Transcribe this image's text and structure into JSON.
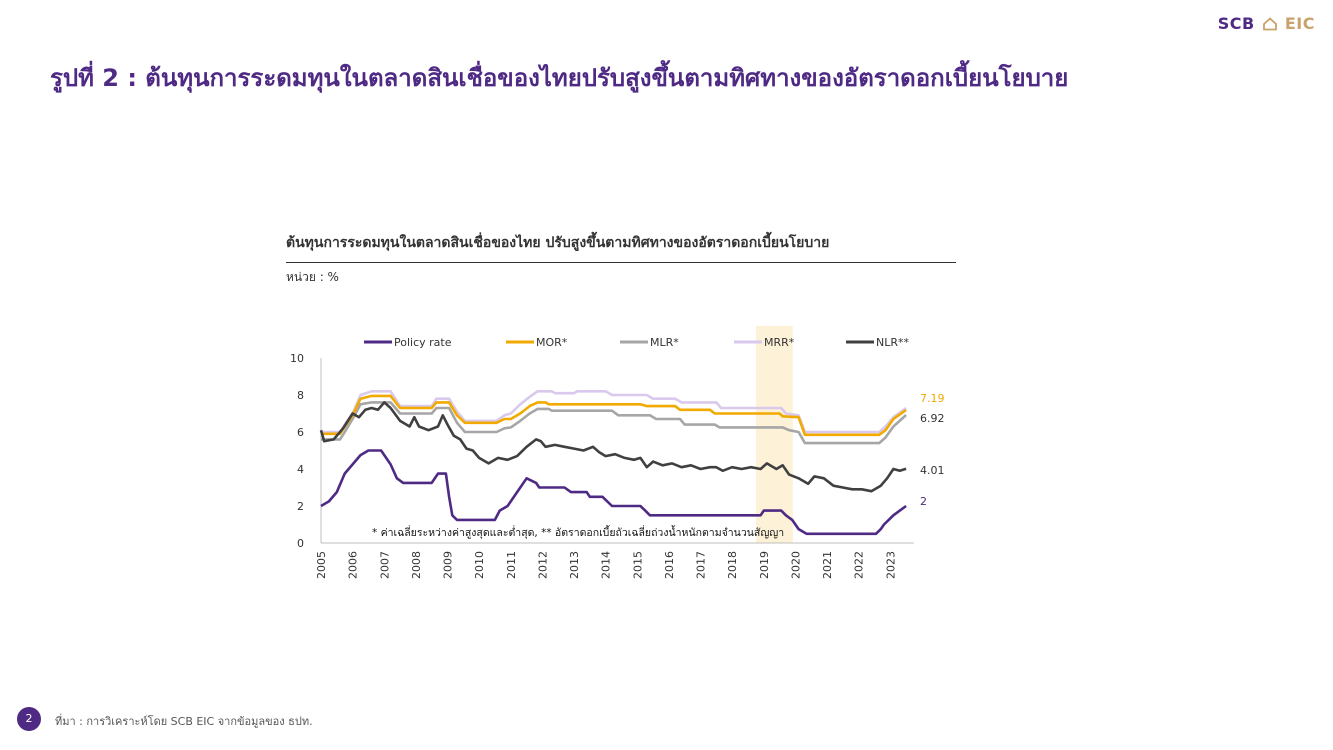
{
  "logo": {
    "left": "SCB",
    "right": "EIC"
  },
  "page_title": "รูปที่ 2 : ต้นทุนการระดมทุนในตลาดสินเชื่อของไทยปรับสูงขึ้นตามทิศทางของอัตราดอกเบี้ยนโยบาย",
  "footer": {
    "page_number": "2",
    "source": "ที่มา : การวิเคราะห์โดย SCB EIC จากข้อมูลของ ธปท."
  },
  "colors": {
    "brand": "#4e2a84",
    "mor": "#f2a900",
    "mlr": "#a6a6a6",
    "mrr": "#d9c9ec",
    "nlr": "#404040",
    "policy": "#4e2a84",
    "highlight": "#fdf2d8"
  },
  "chart_data": {
    "type": "line",
    "title": "ต้นทุนการระดมทุนในตลาดสินเชื่อของไทย ปรับสูงขึ้นตามทิศทางของอัตราดอกเบี้ยนโยบาย",
    "unit_label": "หน่วย : %",
    "footnote": "* ค่าเฉลี่ยระหว่างค่าสูงสุดและต่ำสุด, ** อัตราดอกเบี้ยถัวเฉลี่ยถ่วงน้ำหนักตามจำนวนสัญญา",
    "x_ticks": [
      "2005",
      "2006",
      "2007",
      "2008",
      "2009",
      "2010",
      "2011",
      "2012",
      "2013",
      "2014",
      "2015",
      "2016",
      "2017",
      "2018",
      "2019",
      "2020",
      "2021",
      "2022",
      "2023"
    ],
    "y_ticks": [
      "0",
      "2",
      "4",
      "6",
      "8",
      "10"
    ],
    "ylim": [
      0,
      10
    ],
    "xlim": [
      2005,
      2023.75
    ],
    "highlight_period": [
      2018.75,
      2019.92
    ],
    "series": [
      {
        "name": "Policy rate",
        "color": "#4e2a84",
        "end_label": "2",
        "points": [
          [
            2005,
            2
          ],
          [
            2005.25,
            2.25
          ],
          [
            2005.5,
            2.75
          ],
          [
            2005.75,
            3.75
          ],
          [
            2006,
            4.25
          ],
          [
            2006.25,
            4.75
          ],
          [
            2006.5,
            5
          ],
          [
            2006.9,
            5
          ],
          [
            2007.2,
            4.25
          ],
          [
            2007.4,
            3.5
          ],
          [
            2007.6,
            3.25
          ],
          [
            2008.5,
            3.25
          ],
          [
            2008.7,
            3.75
          ],
          [
            2008.95,
            3.75
          ],
          [
            2009.05,
            2.5
          ],
          [
            2009.15,
            1.5
          ],
          [
            2009.3,
            1.25
          ],
          [
            2010.5,
            1.25
          ],
          [
            2010.65,
            1.75
          ],
          [
            2010.9,
            2
          ],
          [
            2011.2,
            2.75
          ],
          [
            2011.5,
            3.5
          ],
          [
            2011.8,
            3.25
          ],
          [
            2011.9,
            3
          ],
          [
            2012.7,
            3
          ],
          [
            2012.9,
            2.75
          ],
          [
            2013.4,
            2.75
          ],
          [
            2013.5,
            2.5
          ],
          [
            2013.9,
            2.5
          ],
          [
            2014.2,
            2
          ],
          [
            2015.1,
            2
          ],
          [
            2015.25,
            1.75
          ],
          [
            2015.4,
            1.5
          ],
          [
            2018.9,
            1.5
          ],
          [
            2019,
            1.75
          ],
          [
            2019.55,
            1.75
          ],
          [
            2019.7,
            1.5
          ],
          [
            2019.9,
            1.25
          ],
          [
            2020.1,
            0.75
          ],
          [
            2020.35,
            0.5
          ],
          [
            2022.55,
            0.5
          ],
          [
            2022.7,
            0.75
          ],
          [
            2022.8,
            1
          ],
          [
            2022.95,
            1.25
          ],
          [
            2023.1,
            1.5
          ],
          [
            2023.3,
            1.75
          ],
          [
            2023.5,
            2
          ]
        ]
      },
      {
        "name": "MOR*",
        "color": "#f2a900",
        "end_label": "7.19",
        "points": [
          [
            2005,
            5.9
          ],
          [
            2005.6,
            5.9
          ],
          [
            2005.75,
            6.3
          ],
          [
            2006,
            6.9
          ],
          [
            2006.25,
            7.8
          ],
          [
            2006.6,
            7.95
          ],
          [
            2007.2,
            7.95
          ],
          [
            2007.5,
            7.3
          ],
          [
            2008.5,
            7.3
          ],
          [
            2008.65,
            7.6
          ],
          [
            2009.05,
            7.6
          ],
          [
            2009.3,
            6.9
          ],
          [
            2009.55,
            6.5
          ],
          [
            2010.55,
            6.5
          ],
          [
            2010.8,
            6.7
          ],
          [
            2011,
            6.7
          ],
          [
            2011.3,
            7
          ],
          [
            2011.6,
            7.4
          ],
          [
            2011.85,
            7.6
          ],
          [
            2012.1,
            7.6
          ],
          [
            2012.2,
            7.5
          ],
          [
            2015.1,
            7.5
          ],
          [
            2015.3,
            7.4
          ],
          [
            2016.2,
            7.4
          ],
          [
            2016.35,
            7.2
          ],
          [
            2017.3,
            7.2
          ],
          [
            2017.45,
            7.0
          ],
          [
            2019.5,
            7.0
          ],
          [
            2019.6,
            6.85
          ],
          [
            2020.1,
            6.8
          ],
          [
            2020.3,
            5.85
          ],
          [
            2022.65,
            5.85
          ],
          [
            2022.85,
            6.1
          ],
          [
            2023.1,
            6.7
          ],
          [
            2023.5,
            7.19
          ]
        ]
      },
      {
        "name": "MLR*",
        "color": "#a6a6a6",
        "end_label": "6.92",
        "points": [
          [
            2005,
            5.6
          ],
          [
            2005.6,
            5.6
          ],
          [
            2005.75,
            6.0
          ],
          [
            2006,
            6.7
          ],
          [
            2006.25,
            7.5
          ],
          [
            2006.6,
            7.6
          ],
          [
            2007.2,
            7.6
          ],
          [
            2007.5,
            7.0
          ],
          [
            2008.5,
            7.0
          ],
          [
            2008.65,
            7.3
          ],
          [
            2009.05,
            7.3
          ],
          [
            2009.3,
            6.5
          ],
          [
            2009.55,
            6.0
          ],
          [
            2010.55,
            6.0
          ],
          [
            2010.8,
            6.2
          ],
          [
            2011,
            6.25
          ],
          [
            2011.3,
            6.6
          ],
          [
            2011.6,
            7.0
          ],
          [
            2011.85,
            7.25
          ],
          [
            2012.2,
            7.25
          ],
          [
            2012.3,
            7.15
          ],
          [
            2014.2,
            7.15
          ],
          [
            2014.4,
            6.9
          ],
          [
            2015.4,
            6.9
          ],
          [
            2015.6,
            6.7
          ],
          [
            2016.35,
            6.7
          ],
          [
            2016.5,
            6.4
          ],
          [
            2017.45,
            6.4
          ],
          [
            2017.6,
            6.25
          ],
          [
            2019.6,
            6.25
          ],
          [
            2019.8,
            6.1
          ],
          [
            2020.1,
            6.0
          ],
          [
            2020.3,
            5.4
          ],
          [
            2022.65,
            5.4
          ],
          [
            2022.85,
            5.7
          ],
          [
            2023.1,
            6.3
          ],
          [
            2023.5,
            6.92
          ]
        ]
      },
      {
        "name": "MRR*",
        "color": "#d9c9ec",
        "end_label": "",
        "points": [
          [
            2005,
            6
          ],
          [
            2005.6,
            6
          ],
          [
            2005.75,
            6.4
          ],
          [
            2006,
            7
          ],
          [
            2006.25,
            8
          ],
          [
            2006.6,
            8.2
          ],
          [
            2007.2,
            8.2
          ],
          [
            2007.5,
            7.4
          ],
          [
            2008.5,
            7.4
          ],
          [
            2008.65,
            7.8
          ],
          [
            2009.05,
            7.8
          ],
          [
            2009.3,
            7.1
          ],
          [
            2009.55,
            6.6
          ],
          [
            2010.55,
            6.6
          ],
          [
            2010.8,
            6.9
          ],
          [
            2011,
            7
          ],
          [
            2011.3,
            7.5
          ],
          [
            2011.6,
            7.9
          ],
          [
            2011.85,
            8.2
          ],
          [
            2012.3,
            8.2
          ],
          [
            2012.4,
            8.1
          ],
          [
            2013,
            8.1
          ],
          [
            2013.1,
            8.2
          ],
          [
            2014,
            8.2
          ],
          [
            2014.2,
            8.0
          ],
          [
            2015.3,
            8.0
          ],
          [
            2015.5,
            7.8
          ],
          [
            2016.2,
            7.8
          ],
          [
            2016.4,
            7.6
          ],
          [
            2017.5,
            7.6
          ],
          [
            2017.65,
            7.3
          ],
          [
            2019.55,
            7.3
          ],
          [
            2019.7,
            7.0
          ],
          [
            2020.1,
            6.9
          ],
          [
            2020.3,
            6.0
          ],
          [
            2022.65,
            6.0
          ],
          [
            2022.85,
            6.3
          ],
          [
            2023.1,
            6.8
          ],
          [
            2023.5,
            7.3
          ]
        ]
      },
      {
        "name": "NLR**",
        "color": "#404040",
        "end_label": "4.01",
        "points": [
          [
            2005,
            6.1
          ],
          [
            2005.1,
            5.5
          ],
          [
            2005.4,
            5.6
          ],
          [
            2005.7,
            6.2
          ],
          [
            2006,
            7
          ],
          [
            2006.2,
            6.8
          ],
          [
            2006.4,
            7.2
          ],
          [
            2006.6,
            7.3
          ],
          [
            2006.8,
            7.2
          ],
          [
            2007,
            7.6
          ],
          [
            2007.2,
            7.3
          ],
          [
            2007.5,
            6.6
          ],
          [
            2007.8,
            6.3
          ],
          [
            2007.95,
            6.8
          ],
          [
            2008.1,
            6.3
          ],
          [
            2008.4,
            6.1
          ],
          [
            2008.7,
            6.3
          ],
          [
            2008.85,
            6.9
          ],
          [
            2009,
            6.4
          ],
          [
            2009.2,
            5.8
          ],
          [
            2009.4,
            5.6
          ],
          [
            2009.6,
            5.1
          ],
          [
            2009.8,
            5.0
          ],
          [
            2010,
            4.6
          ],
          [
            2010.3,
            4.3
          ],
          [
            2010.6,
            4.6
          ],
          [
            2010.9,
            4.5
          ],
          [
            2011.2,
            4.7
          ],
          [
            2011.5,
            5.2
          ],
          [
            2011.8,
            5.6
          ],
          [
            2011.95,
            5.5
          ],
          [
            2012.1,
            5.2
          ],
          [
            2012.4,
            5.3
          ],
          [
            2012.7,
            5.2
          ],
          [
            2013,
            5.1
          ],
          [
            2013.3,
            5.0
          ],
          [
            2013.6,
            5.2
          ],
          [
            2013.8,
            4.9
          ],
          [
            2014,
            4.7
          ],
          [
            2014.3,
            4.8
          ],
          [
            2014.6,
            4.6
          ],
          [
            2014.9,
            4.5
          ],
          [
            2015.1,
            4.6
          ],
          [
            2015.3,
            4.1
          ],
          [
            2015.5,
            4.4
          ],
          [
            2015.8,
            4.2
          ],
          [
            2016.1,
            4.3
          ],
          [
            2016.4,
            4.1
          ],
          [
            2016.7,
            4.2
          ],
          [
            2017,
            4.0
          ],
          [
            2017.3,
            4.1
          ],
          [
            2017.5,
            4.1
          ],
          [
            2017.7,
            3.9
          ],
          [
            2018,
            4.1
          ],
          [
            2018.3,
            4.0
          ],
          [
            2018.6,
            4.1
          ],
          [
            2018.9,
            4.0
          ],
          [
            2019.1,
            4.3
          ],
          [
            2019.4,
            4.0
          ],
          [
            2019.6,
            4.2
          ],
          [
            2019.8,
            3.7
          ],
          [
            2020.1,
            3.5
          ],
          [
            2020.4,
            3.2
          ],
          [
            2020.6,
            3.6
          ],
          [
            2020.9,
            3.5
          ],
          [
            2021.2,
            3.1
          ],
          [
            2021.5,
            3.0
          ],
          [
            2021.8,
            2.9
          ],
          [
            2022.1,
            2.9
          ],
          [
            2022.4,
            2.8
          ],
          [
            2022.7,
            3.1
          ],
          [
            2022.9,
            3.5
          ],
          [
            2023.1,
            4.0
          ],
          [
            2023.3,
            3.9
          ],
          [
            2023.5,
            4.01
          ]
        ]
      }
    ]
  }
}
